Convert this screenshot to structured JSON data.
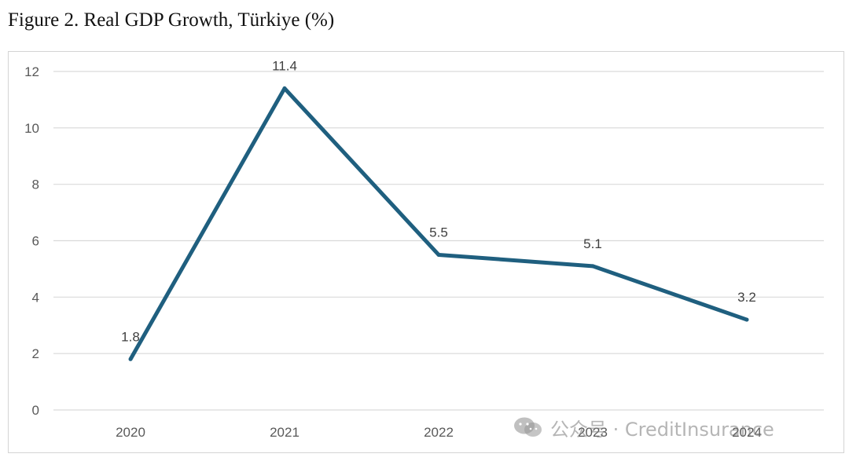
{
  "figure": {
    "title": "Figure 2. Real GDP Growth, Türkiye (%)"
  },
  "chart_data": {
    "type": "line",
    "title": "",
    "xlabel": "",
    "ylabel": "",
    "categories": [
      "2020",
      "2021",
      "2022",
      "2023",
      "2024"
    ],
    "series": [
      {
        "values": [
          1.8,
          11.4,
          5.5,
          5.1,
          3.2
        ],
        "color": "#1f5f7f",
        "data_labels": [
          "1.8",
          "11.4",
          "5.5",
          "5.1",
          "3.2"
        ]
      }
    ],
    "ylim": [
      0,
      12
    ],
    "yticks": [
      "0",
      "2",
      "4",
      "6",
      "8",
      "10",
      "12"
    ],
    "grid": true,
    "legend": "none",
    "gridline_color": "#d9d9d9"
  },
  "watermark": {
    "icon": "wechat-icon",
    "text": "公众号 · CreditInsurance"
  }
}
